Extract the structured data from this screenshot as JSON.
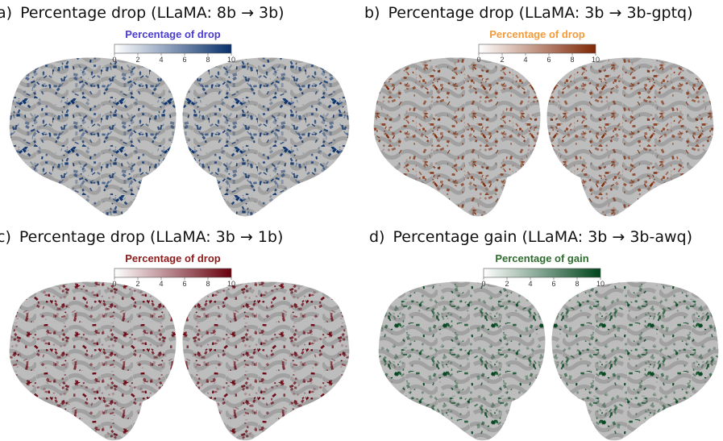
{
  "panels": [
    {
      "label": "a)",
      "title": "Percentage drop (LLaMA: 8b → 3b)",
      "colorbar": {
        "title": "Percentage of drop",
        "title_color": "#4a3ccc",
        "cmap_color": "#08306b",
        "clim": [
          0,
          10
        ],
        "ticks": [
          0,
          2,
          4,
          6,
          8,
          10
        ]
      }
    },
    {
      "label": "b)",
      "title": "Percentage drop (LLaMA: 3b → 3b-gptq)",
      "colorbar": {
        "title": "Percentage of drop",
        "title_color": "#f39a3a",
        "cmap_color": "#7f2704",
        "clim": [
          0,
          10
        ],
        "ticks": [
          0,
          2,
          4,
          6,
          8,
          10
        ]
      }
    },
    {
      "label": "c)",
      "title": "Percentage drop (LLaMA: 3b → 1b)",
      "colorbar": {
        "title": "Percentage of drop",
        "title_color": "#8b1a1a",
        "cmap_color": "#67000d",
        "clim": [
          0,
          10
        ],
        "ticks": [
          0,
          2,
          4,
          6,
          8,
          10
        ]
      }
    },
    {
      "label": "d)",
      "title": "Percentage gain (LLaMA: 3b → 3b-awq)",
      "colorbar": {
        "title": "Percentage of gain",
        "title_color": "#2e6b2e",
        "cmap_color": "#00441b",
        "clim": [
          0,
          10
        ],
        "ticks": [
          0,
          2,
          4,
          6,
          8,
          10
        ]
      }
    }
  ]
}
